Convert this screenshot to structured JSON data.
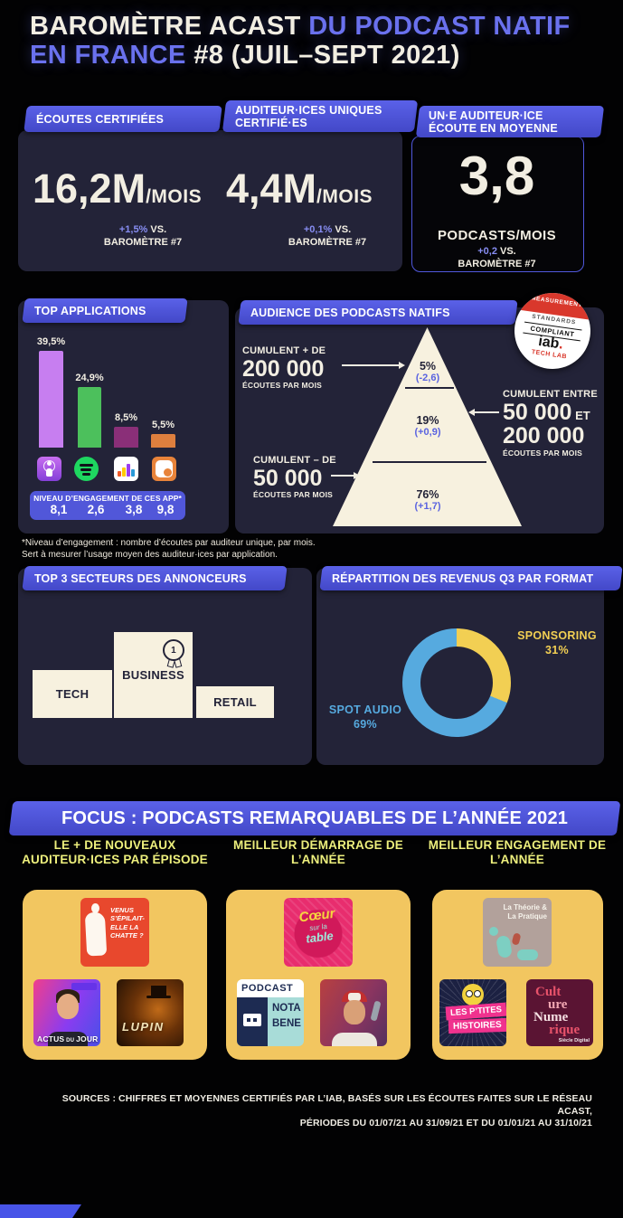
{
  "colors": {
    "background": "#020203",
    "panel": "#232338",
    "banner_purple": "#4d53dc",
    "cream": "#f2eee2",
    "title_accent": "#6a71ee",
    "delta_purple": "#878df2",
    "focus_heading_yellow": "#eef07d",
    "focus_card_yellow": "#f2c660"
  },
  "header": {
    "title_seg1": "BAROMÈTRE ACAST ",
    "title_seg2": "DU PODCAST NATIF EN FRANCE",
    "title_seg3": " #8 (JUIL–SEPT 2021)"
  },
  "stats": {
    "ecoutes": {
      "banner": "ÉCOUTES CERTIFIÉES",
      "value": "16,2M",
      "unit": "/MOIS",
      "delta": "+1,5%",
      "vs": " VS.",
      "ref": "BAROMÈTRE #7"
    },
    "auditeurs": {
      "banner": "AUDITEUR·ICES UNIQUES CERTIFIÉ·ES",
      "value": "4,4M",
      "unit": "/MOIS",
      "delta": "+0,1%",
      "vs": " VS.",
      "ref": "BAROMÈTRE #7"
    },
    "moyenne": {
      "banner": "UN·E AUDITEUR·ICE ÉCOUTE EN MOYENNE",
      "value": "3,8",
      "unit": "PODCASTS/MOIS",
      "delta": "+0,2",
      "vs": " VS.",
      "ref": "BAROMÈTRE #7"
    }
  },
  "apps_section": {
    "banner": "TOP APPLICATIONS",
    "engagement_title": "NIVEAU D’ENGAGEMENT DE CES APP*",
    "footnote_line1": "*Niveau d’engagement : nombre d’écoutes par auditeur unique, par mois.",
    "footnote_line2": "Sert à mesurer l’usage moyen des auditeur·ices par application."
  },
  "audience_section": {
    "banner": "AUDIENCE DES PODCASTS NATIFS",
    "left_top": {
      "l1": "CUMULENT + DE",
      "l2": "200 000",
      "l3": "ÉCOUTES PAR MOIS"
    },
    "left_bottom": {
      "l1": "CUMULENT – DE",
      "l2": "50 000",
      "l3": "ÉCOUTES PAR MOIS"
    },
    "right": {
      "l1": "CUMULENT ENTRE",
      "l2": "50 000",
      "l2b": " ET",
      "l3": "200 000",
      "l4": "ÉCOUTES PAR MOIS"
    },
    "iab_badge": {
      "l1": "MEASUREMENT",
      "l2": "STANDARDS",
      "l3": "COMPLIANT",
      "l4": "iab",
      "l4dot": ".",
      "l5": "TECH LAB"
    }
  },
  "podium_section": {
    "banner": "TOP 3 SECTEURS DES ANNONCEURS",
    "badge": "1"
  },
  "revenue_section": {
    "banner": "RÉPARTITION DES REVENUS Q3 PAR FORMAT"
  },
  "focus": {
    "banner": "FOCUS : PODCASTS REMARQUABLES DE L’ANNÉE 2021",
    "columns": [
      {
        "heading": "LE + DE NOUVEAUX AUDITEUR·ICES PAR ÉPISODE"
      },
      {
        "heading": "MEILLEUR DÉMARRAGE DE L’ANNÉE"
      },
      {
        "heading": "MEILLEUR ENGAGEMENT DE L’ANNÉE"
      }
    ],
    "covers": {
      "venus": {
        "text": "VENUS S’ÉPILAIT-ELLE LA CHATTE ?"
      },
      "actus": {
        "line1": "ACTUS",
        "line1b": " DU ",
        "line2": "JOUR"
      },
      "lupin": {
        "text": "LUPIN"
      },
      "coeur": {
        "line1": "Cœur",
        "line2": "sur la",
        "line3": "table"
      },
      "notabene": {
        "line1": "PODCAST",
        "line2": "NOTA",
        "line3": "BENE"
      },
      "theorie": {
        "line1": "La Théorie &",
        "line2": "La Pratique"
      },
      "ptites": {
        "line1": "LES P’TITES",
        "line2": "HISTOIRES"
      },
      "culture": {
        "l1": "Cult",
        "l2": "ure",
        "l3": "Nume",
        "l4": "rique",
        "credit": "Siècle Digital"
      }
    }
  },
  "sources": {
    "line1": "SOURCES : CHIFFRES ET MOYENNES CERTIFIÉS PAR L’IAB, BASÉS SUR LES ÉCOUTES FAITES SUR LE RÉSEAU ACAST,",
    "line2": "PÉRIODES DU 01/07/21 AU 31/09/21 ET DU 01/01/21 AU 31/10/21"
  },
  "chart_data": [
    {
      "type": "bar",
      "title": "TOP APPLICATIONS",
      "categories": [
        "Apple Podcasts",
        "Spotify",
        "Deezer",
        "Podcast Addict"
      ],
      "icons": [
        "apple-podcasts-icon",
        "spotify-icon",
        "deezer-icon",
        "podcast-addict-icon"
      ],
      "values": [
        39.5,
        24.9,
        8.5,
        5.5
      ],
      "value_labels": [
        "39,5%",
        "24,9%",
        "8,5%",
        "5,5%"
      ],
      "colors": [
        "#c77ef0",
        "#4cc05c",
        "#8a2f78",
        "#de7f3e"
      ],
      "engagement_values": [
        8.1,
        2.6,
        3.8,
        9.8
      ],
      "engagement_labels": [
        "8,1",
        "2,6",
        "3,8",
        "9,8"
      ],
      "ylim": [
        0,
        45
      ],
      "unit": "%"
    },
    {
      "type": "pyramid",
      "title": "AUDIENCE DES PODCASTS NATIFS",
      "segments": [
        {
          "share": "5%",
          "value": 5,
          "delta": "(-2,6)",
          "band": "cumulent + de 200 000 écoutes par mois"
        },
        {
          "share": "19%",
          "value": 19,
          "delta": "(+0,9)",
          "band": "cumulent entre 50 000 et 200 000 écoutes par mois"
        },
        {
          "share": "76%",
          "value": 76,
          "delta": "(+1,7)",
          "band": "cumulent – de 50 000 écoutes par mois"
        }
      ]
    },
    {
      "type": "podium",
      "title": "TOP 3 SECTEURS DES ANNONCEURS",
      "columns": [
        "TECH",
        "BUSINESS",
        "RETAIL"
      ],
      "ranks": [
        2,
        1,
        3
      ]
    },
    {
      "type": "pie",
      "title": "RÉPARTITION DES REVENUS Q3 PAR FORMAT",
      "donut": true,
      "labels": [
        "SPONSORING",
        "SPOT AUDIO"
      ],
      "values": [
        31,
        69
      ],
      "value_labels": [
        "31%",
        "69%"
      ],
      "colors": [
        "#f2cf53",
        "#56aadf"
      ],
      "start": "top",
      "direction": "clockwise"
    }
  ]
}
